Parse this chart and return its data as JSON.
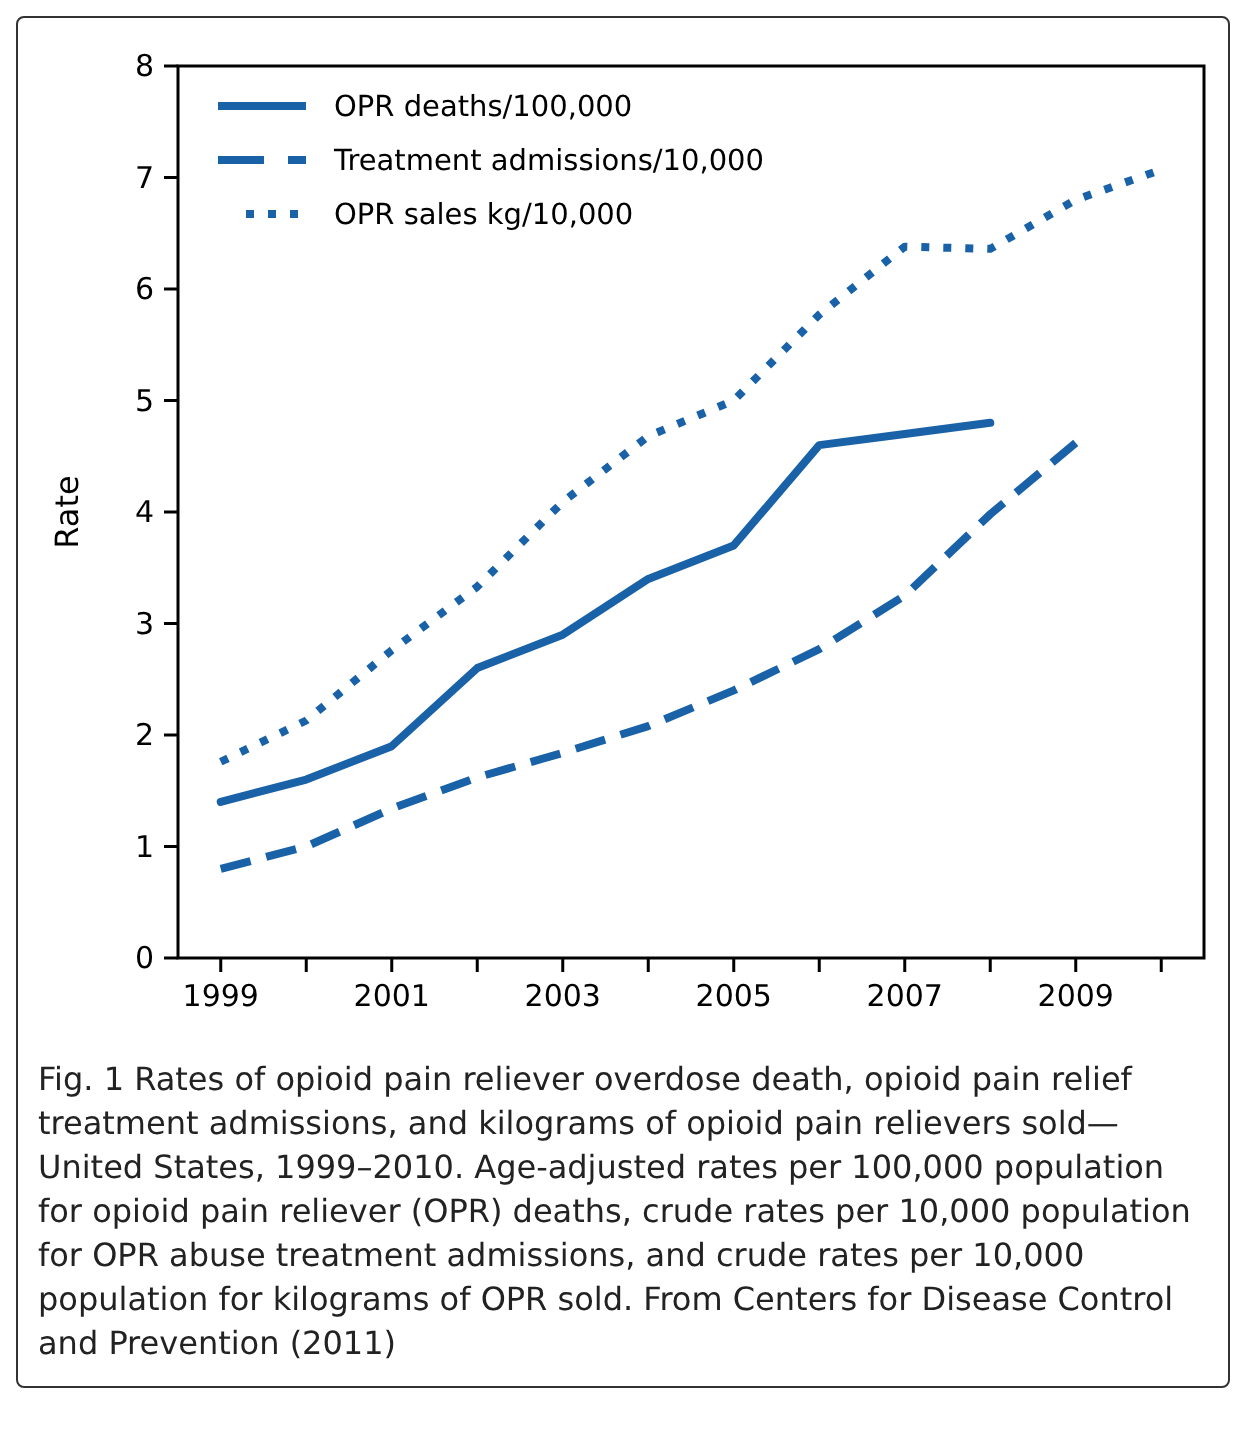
{
  "chart_data": {
    "type": "line",
    "ylabel": "Rate",
    "x": [
      1999,
      2000,
      2001,
      2002,
      2003,
      2004,
      2005,
      2006,
      2007,
      2008,
      2009,
      2010
    ],
    "xlim": [
      1998.5,
      2010.5
    ],
    "xticks": [
      1999,
      {
        "value": 2000,
        "label": null
      },
      2001,
      {
        "value": 2002,
        "label": null
      },
      2003,
      {
        "value": 2004,
        "label": null
      },
      2005,
      {
        "value": 2006,
        "label": null
      },
      2007,
      {
        "value": 2008,
        "label": null
      },
      2009,
      {
        "value": 2010,
        "label": null
      }
    ],
    "ylim": [
      0,
      8
    ],
    "yticks": [
      0,
      1,
      2,
      3,
      4,
      5,
      6,
      7,
      8
    ],
    "grid": false,
    "legend": "top left",
    "marker": "none",
    "series": [
      {
        "name": "OPR deaths/100,000",
        "color": "#1a62a8",
        "line_style": "solid",
        "values": [
          1.4,
          1.6,
          1.9,
          2.6,
          2.9,
          3.4,
          3.7,
          4.6,
          4.7,
          4.8,
          null,
          null
        ]
      },
      {
        "name": "Treatment admissions/10,000",
        "color": "#1a62a8",
        "line_style": "dashed",
        "values": [
          0.8,
          1.0,
          1.34,
          1.62,
          1.84,
          2.08,
          2.4,
          2.77,
          3.25,
          3.98,
          4.62,
          null
        ]
      },
      {
        "name": "OPR sales kg/10,000",
        "color": "#1a62a8",
        "line_style": "dotted",
        "values": [
          1.76,
          2.13,
          2.76,
          3.33,
          4.09,
          4.68,
          5.0,
          5.77,
          6.38,
          6.36,
          6.8,
          7.07
        ]
      }
    ],
    "annotations": [
      "Fig. 1 Rates of opioid pain reliever overdose death, opioid pain relief treatment admissions, and kilograms of opioid pain relievers sold—United States, 1999–2010. Age-adjusted rates per 100,000 population for opioid pain reliever (OPR) deaths, crude rates per 10,000 population for OPR abuse treatment admissions, and crude rates per 10,000 population for kilograms of OPR sold. From Centers for Disease Control and Prevention (2011)"
    ]
  }
}
